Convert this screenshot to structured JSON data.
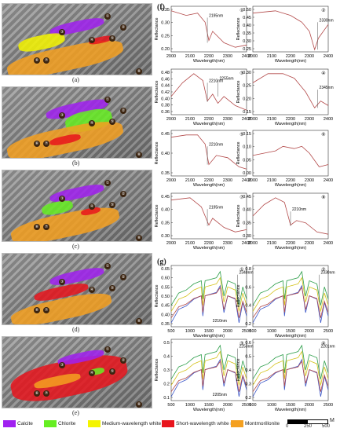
{
  "maps": [
    {
      "label": "(a)",
      "points": [
        "①",
        "②",
        "③",
        "④",
        "⑤",
        "⑥",
        "⑦",
        "⑧"
      ]
    },
    {
      "label": "(b)",
      "points": [
        "①",
        "②",
        "③",
        "④",
        "⑤",
        "⑥",
        "⑦",
        "⑧"
      ]
    },
    {
      "label": "(c)",
      "points": [
        "①",
        "②",
        "③",
        "④",
        "⑤",
        "⑥",
        "⑦",
        "⑧"
      ]
    },
    {
      "label": "(d)",
      "points": [
        "①",
        "②",
        "③",
        "④",
        "⑤",
        "⑥",
        "⑦",
        "⑧"
      ]
    },
    {
      "label": "(e)",
      "points": [
        "①",
        "②",
        "③",
        "④",
        "⑤",
        "⑥",
        "⑦",
        "⑧"
      ]
    }
  ],
  "colors": {
    "calcite": "#a020f0",
    "chlorite": "#66ee22",
    "mwwm": "#f4f400",
    "swwm": "#e8141c",
    "montmorillonite": "#f4a020",
    "curve_red": "#b34a4a",
    "curve_gray": "#888888"
  },
  "f_panel": {
    "tag": "(f)",
    "ylabel": "Reflectance",
    "xlabel": "Wavelength(nm)",
    "xticks": [
      "2000",
      "2100",
      "2200",
      "2300",
      "2400"
    ],
    "plots": [
      {
        "num": "①",
        "yticks": [
          "0.35",
          "0.30",
          "0.25",
          "0.20"
        ],
        "annotation": "2195nm"
      },
      {
        "num": "②",
        "yticks": [
          "0.50",
          "0.45",
          "0.40",
          "0.35",
          "0.30",
          "0.25"
        ],
        "annotation": "2330nm"
      },
      {
        "num": "③",
        "yticks": [
          "0.48",
          "0.46",
          "0.44",
          "0.42",
          "0.40",
          "0.38",
          "0.36"
        ],
        "annotation": "2210nm",
        "annotation2": "2255nm"
      },
      {
        "num": "④",
        "yticks": [
          "0.30",
          "0.25",
          "0.20",
          "0.15"
        ],
        "annotation": "2345nm"
      },
      {
        "num": "⑤",
        "yticks": [
          "0.45",
          "0.40",
          "0.35"
        ],
        "annotation": "2210nm"
      },
      {
        "num": "⑥",
        "yticks": [
          "0.15",
          "0.10",
          "0.05",
          "0.00"
        ],
        "annotation": ""
      },
      {
        "num": "⑦",
        "yticks": [
          "0.45",
          "0.40",
          "0.35",
          "0.30"
        ],
        "annotation": "2195nm"
      },
      {
        "num": "⑧",
        "yticks": [
          "0.45",
          "0.40",
          "0.35",
          "0.30"
        ],
        "annotation": "2210nm"
      }
    ]
  },
  "g_panel": {
    "tag": "(g)",
    "ylabel": "Reflectance",
    "xlabel": "Wavelength(nm)",
    "xticks": [
      "500",
      "1000",
      "1500",
      "2000",
      "2500"
    ],
    "plots": [
      {
        "num": "①",
        "yticks": [
          "0.65",
          "0.60",
          "0.55",
          "0.50",
          "0.45",
          "0.40",
          "0.35"
        ],
        "annotation": "2340nm",
        "annotation2": "2210nm"
      },
      {
        "num": "②",
        "yticks": [
          "0.8",
          "0.6",
          "0.4",
          "0.2"
        ],
        "annotation": "2330nm"
      },
      {
        "num": "③",
        "yticks": [
          "0.5",
          "0.4",
          "0.3",
          "0.2",
          "0.1"
        ],
        "annotation": "2253nm",
        "annotation2": "2205nm"
      },
      {
        "num": "④",
        "yticks": [
          "0.6",
          "0.5",
          "0.4",
          "0.3",
          "0.2"
        ],
        "annotation": "2201nm"
      }
    ]
  },
  "legend": {
    "items": [
      {
        "key": "calcite",
        "label": "Calcite"
      },
      {
        "key": "chlorite",
        "label": "Chlorite"
      },
      {
        "key": "mwwm",
        "label": "Medium-wavelength white mica"
      },
      {
        "key": "swwm",
        "label": "Short-wavelength white mica"
      },
      {
        "key": "montmorillonite",
        "label": "Montmorillonite"
      }
    ],
    "scale_ticks": [
      "0",
      "250",
      "500"
    ],
    "scale_unit": "M"
  }
}
